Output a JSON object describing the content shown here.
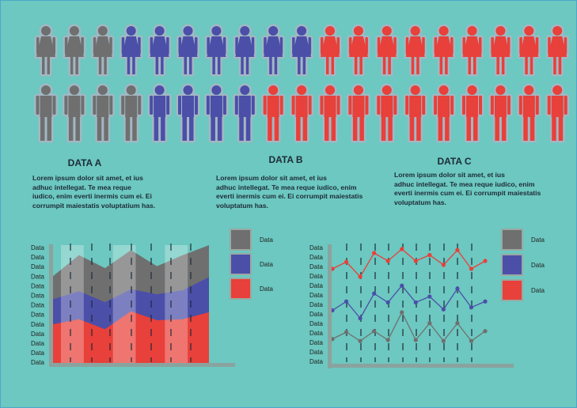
{
  "pictogram": {
    "rows": [
      {
        "figure": "female",
        "colors": [
          "#6f6f6f",
          "#6f6f6f",
          "#6f6f6f",
          "#4b4fa8",
          "#4b4fa8",
          "#4b4fa8",
          "#4b4fa8",
          "#4b4fa8",
          "#4b4fa8",
          "#4b4fa8",
          "#e8403a",
          "#e8403a",
          "#e8403a",
          "#e8403a",
          "#e8403a",
          "#e8403a",
          "#e8403a",
          "#e8403a",
          "#e8403a"
        ]
      },
      {
        "figure": "male",
        "colors": [
          "#6f6f6f",
          "#6f6f6f",
          "#6f6f6f",
          "#6f6f6f",
          "#4b4fa8",
          "#4b4fa8",
          "#4b4fa8",
          "#4b4fa8",
          "#e8403a",
          "#e8403a",
          "#e8403a",
          "#e8403a",
          "#e8403a",
          "#e8403a",
          "#e8403a",
          "#e8403a",
          "#e8403a",
          "#e8403a",
          "#e8403a"
        ]
      }
    ]
  },
  "blocks": [
    {
      "title": "DATA A",
      "lines": [
        "Lorem ipsum dolor sit amet, et ius",
        "adhuc intellegat. Te mea reque",
        "iudico, enim everti inermis cum ei. Ei",
        "corrumpit maiestatis voluptatium has."
      ]
    },
    {
      "title": "DATA B",
      "lines": [
        "Lorem ipsum dolor sit amet, et ius",
        "adhuc intellegat. Te mea reque iudico, enim",
        "everti inermis cum ei. Ei corrumpit maiestatis",
        "voluptatum has."
      ]
    },
    {
      "title": "DATA C",
      "lines": [
        "Lorem ipsum dolor sit amet, et ius",
        "adhuc intellegat. Te mea reque iudico, enim",
        "everti inermis cum ei. Ei corrumpit maiestatis",
        "voluptatum has."
      ]
    }
  ],
  "colors": {
    "gray": "#6f6f6f",
    "blue": "#4b4fa8",
    "red": "#e8403a",
    "axis": "#8aa39e"
  },
  "chart_data": [
    {
      "type": "area",
      "ytick_labels": [
        "Data",
        "Data",
        "Data",
        "Data",
        "Data",
        "Data",
        "Data",
        "Data",
        "Data",
        "Data",
        "Data",
        "Data",
        "Data"
      ],
      "legend": [
        "Data",
        "Data",
        "Data"
      ],
      "ylim": [
        0,
        12
      ],
      "x": [
        0,
        1,
        2,
        3,
        4,
        5,
        6
      ],
      "series": [
        {
          "color": "#e8403a",
          "values": [
            4.1,
            4.6,
            3.6,
            5.4,
            4.5,
            4.6,
            5.3
          ]
        },
        {
          "color": "#4b4fa8",
          "values": [
            6.6,
            7.4,
            6.3,
            7.6,
            7.1,
            7.5,
            8.8
          ]
        },
        {
          "color": "#6f6f6f",
          "values": [
            8.9,
            11.0,
            9.7,
            11.5,
            9.9,
            11.0,
            12.0
          ]
        }
      ]
    },
    {
      "type": "line",
      "ytick_labels": [
        "Data",
        "Data",
        "Data",
        "Data",
        "Data",
        "Data",
        "Data",
        "Data",
        "Data",
        "Data",
        "Data",
        "Data",
        "Data"
      ],
      "legend": [
        "Data",
        "Data",
        "Data"
      ],
      "ylim": [
        0,
        12
      ],
      "x": [
        0,
        1,
        2,
        3,
        4,
        5,
        6,
        7,
        8,
        9,
        10,
        11
      ],
      "series": [
        {
          "color": "#6f6f6f",
          "values": [
            2.5,
            3.2,
            2.3,
            3.3,
            2.4,
            5.2,
            2.4,
            4.1,
            2.3,
            4.1,
            2.3,
            3.3
          ]
        },
        {
          "color": "#4b4fa8",
          "values": [
            5.4,
            6.3,
            4.6,
            7.1,
            6.2,
            7.9,
            6.2,
            6.8,
            5.5,
            7.6,
            5.7,
            6.3
          ]
        },
        {
          "color": "#e8403a",
          "values": [
            9.6,
            10.3,
            8.8,
            11.2,
            10.4,
            11.6,
            10.4,
            11.0,
            10.0,
            11.5,
            9.6,
            10.4
          ]
        }
      ]
    }
  ]
}
